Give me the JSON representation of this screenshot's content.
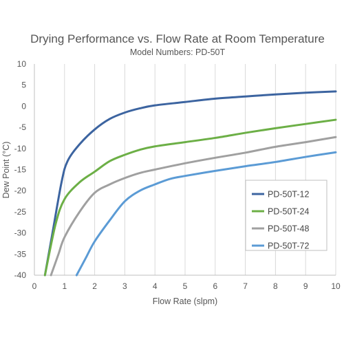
{
  "chart_data": {
    "type": "line",
    "title": "Drying Performance vs. Flow Rate at Room Temperature",
    "subtitle": "Model Numbers: PD-50T",
    "xlabel": "Flow Rate (slpm)",
    "ylabel": "Dew Point (°C)",
    "xlim": [
      0,
      10
    ],
    "ylim": [
      -40,
      10
    ],
    "x_ticks": [
      "0",
      "1",
      "2",
      "3",
      "4",
      "5",
      "6",
      "7",
      "8",
      "9",
      "10"
    ],
    "y_ticks": [
      "10",
      "5",
      "0",
      "-5",
      "-10",
      "-15",
      "-20",
      "-25",
      "-30",
      "-35",
      "-40"
    ],
    "grid": "vertical",
    "legend_position": "right",
    "series": [
      {
        "name": "PD-50T-12",
        "color": "#3C64A0",
        "points": [
          [
            0.35,
            -40
          ],
          [
            0.6,
            -30
          ],
          [
            0.9,
            -18
          ],
          [
            1.1,
            -13
          ],
          [
            1.5,
            -9
          ],
          [
            2,
            -5.5
          ],
          [
            2.5,
            -3
          ],
          [
            3,
            -1.5
          ],
          [
            3.5,
            -0.5
          ],
          [
            4,
            0.2
          ],
          [
            5,
            1
          ],
          [
            6,
            1.8
          ],
          [
            7,
            2.3
          ],
          [
            8,
            2.8
          ],
          [
            9,
            3.2
          ],
          [
            10,
            3.5
          ]
        ]
      },
      {
        "name": "PD-50T-24",
        "color": "#6CAF46",
        "points": [
          [
            0.35,
            -40
          ],
          [
            0.7,
            -28
          ],
          [
            1,
            -22
          ],
          [
            1.5,
            -18
          ],
          [
            2,
            -15.5
          ],
          [
            2.5,
            -13
          ],
          [
            3,
            -11.5
          ],
          [
            3.5,
            -10.3
          ],
          [
            4,
            -9.5
          ],
          [
            5,
            -8.5
          ],
          [
            6,
            -7.5
          ],
          [
            7,
            -6.3
          ],
          [
            8,
            -5.2
          ],
          [
            9,
            -4.2
          ],
          [
            10,
            -3.2
          ]
        ]
      },
      {
        "name": "PD-50T-48",
        "color": "#A0A0A0",
        "points": [
          [
            0.55,
            -40
          ],
          [
            0.8,
            -35
          ],
          [
            1,
            -31
          ],
          [
            1.5,
            -25
          ],
          [
            2,
            -20.5
          ],
          [
            2.5,
            -18.5
          ],
          [
            3,
            -17
          ],
          [
            3.5,
            -15.8
          ],
          [
            4,
            -15
          ],
          [
            5,
            -13.5
          ],
          [
            6,
            -12.2
          ],
          [
            7,
            -11
          ],
          [
            8,
            -9.6
          ],
          [
            9,
            -8.5
          ],
          [
            10,
            -7.3
          ]
        ]
      },
      {
        "name": "PD-50T-72",
        "color": "#5B9BD5",
        "points": [
          [
            1.4,
            -40
          ],
          [
            1.7,
            -36
          ],
          [
            2,
            -32
          ],
          [
            2.5,
            -27
          ],
          [
            3,
            -22.5
          ],
          [
            3.5,
            -20
          ],
          [
            4,
            -18.5
          ],
          [
            4.5,
            -17.2
          ],
          [
            5,
            -16.5
          ],
          [
            6,
            -15.3
          ],
          [
            7,
            -14.2
          ],
          [
            8,
            -13.2
          ],
          [
            9,
            -12
          ],
          [
            10,
            -10.9
          ]
        ]
      }
    ]
  }
}
